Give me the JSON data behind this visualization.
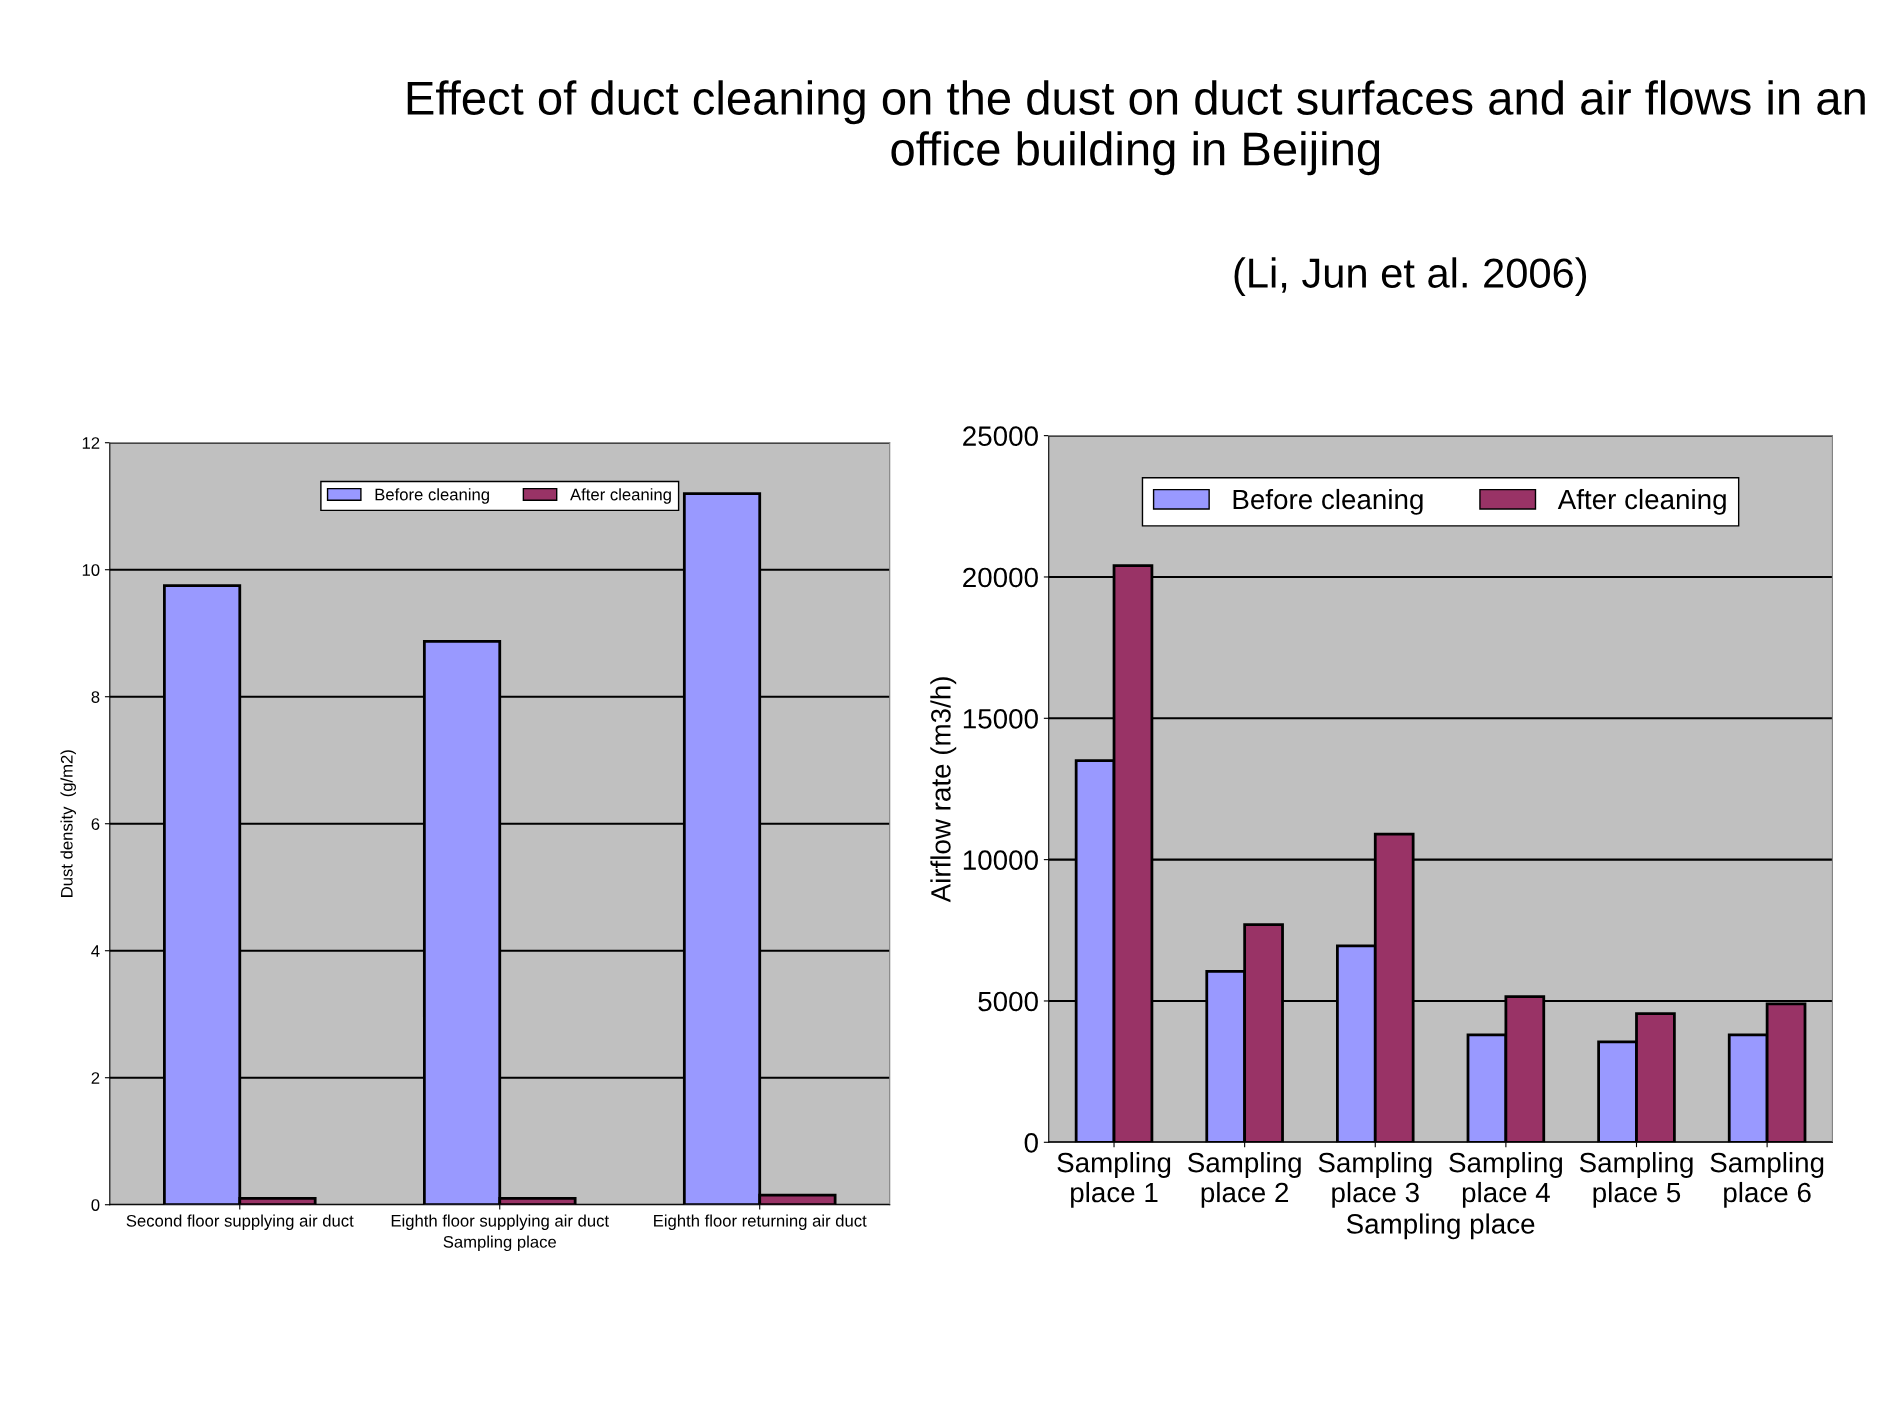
{
  "chart_data": [
    {
      "type": "bar",
      "title": "Effect of duct cleaning on the dust on duct surfaces and air flows in an office building in Beijing",
      "annotations": [
        "(Li, Jun et al. 2006)"
      ],
      "xlabel": "Sampling place",
      "ylabel": "Dust density  (g/m2)",
      "categories": [
        "Second floor supplying air duct",
        "Eighth floor supplying air duct",
        "Eighth floor returning air duct"
      ],
      "series": [
        {
          "name": "Before cleaning",
          "color": "#9999ff",
          "values": [
            9.75,
            8.87,
            11.2
          ]
        },
        {
          "name": "After cleaning",
          "color": "#993366",
          "values": [
            0.1,
            0.1,
            0.15
          ]
        }
      ],
      "ylim": [
        0,
        12
      ],
      "yticks": [
        0,
        2,
        4,
        6,
        8,
        10,
        12
      ],
      "grid": "y",
      "legend": "top"
    },
    {
      "type": "bar",
      "xlabel": "Sampling place",
      "ylabel": "Airflow rate (m3/h)",
      "categories": [
        "Sampling\nplace 1",
        "Sampling\nplace 2",
        "Sampling\nplace 3",
        "Sampling\nplace 4",
        "Sampling\nplace 5",
        "Sampling\nplace 6"
      ],
      "series": [
        {
          "name": "Before cleaning",
          "color": "#9999ff",
          "values": [
            13500,
            6050,
            6950,
            3800,
            3550,
            3800
          ]
        },
        {
          "name": "After cleaning",
          "color": "#993366",
          "values": [
            20400,
            7700,
            10900,
            5150,
            4550,
            4900
          ]
        }
      ],
      "ylim": [
        0,
        25000
      ],
      "yticks": [
        0,
        5000,
        10000,
        15000,
        20000,
        25000
      ],
      "grid": "y",
      "legend": "top"
    }
  ]
}
